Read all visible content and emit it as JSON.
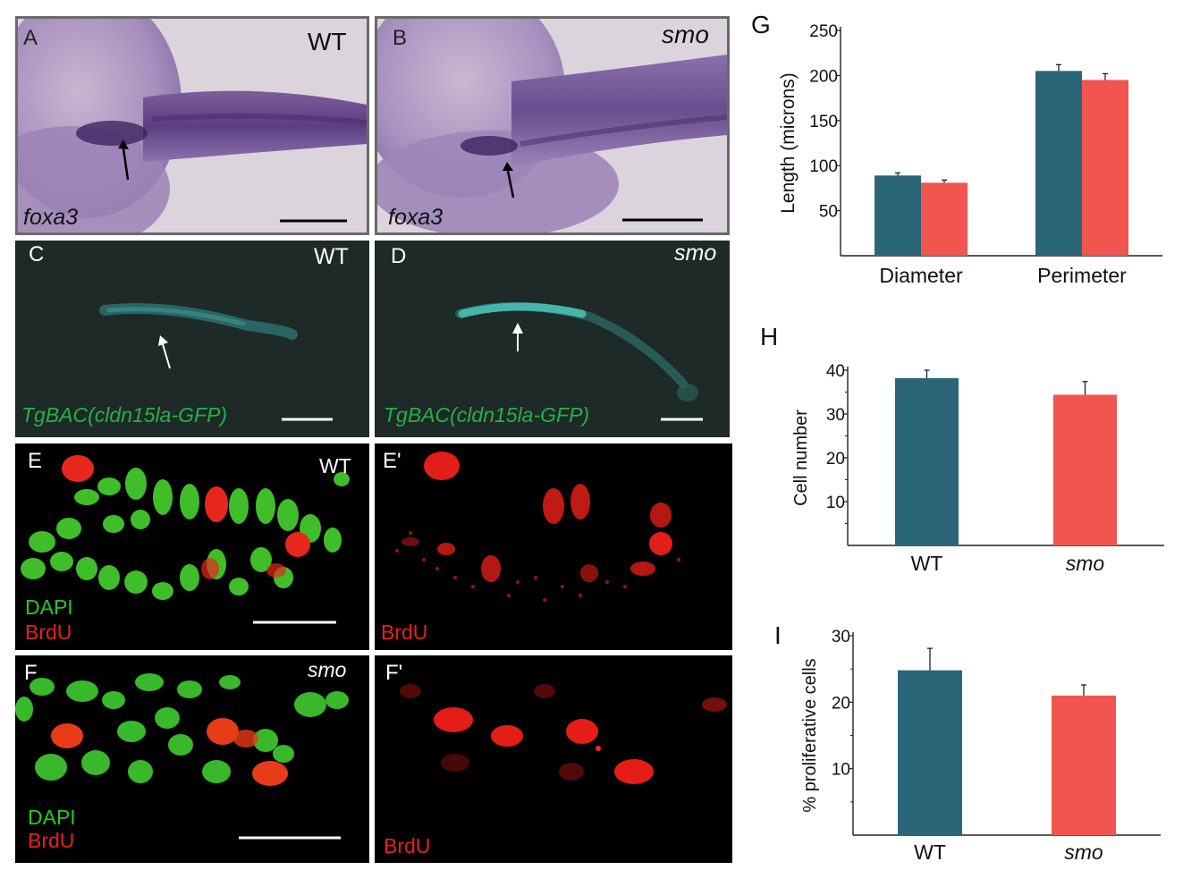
{
  "panels": {
    "A": {
      "letter": "A",
      "genotype": "WT",
      "stain": "foxa3"
    },
    "B": {
      "letter": "B",
      "genotype": "smo",
      "stain": "foxa3"
    },
    "C": {
      "letter": "C",
      "genotype": "WT",
      "transgene": "TgBAC(cldn15la-GFP)"
    },
    "D": {
      "letter": "D",
      "genotype": "smo",
      "transgene": "TgBAC(cldn15la-GFP)"
    },
    "E": {
      "letter": "E",
      "genotype": "WT",
      "dapi": "DAPI",
      "brdu": "BrdU"
    },
    "E2": {
      "letter": "E'",
      "brdu": "BrdU"
    },
    "F": {
      "letter": "F",
      "genotype": "smo",
      "dapi": "DAPI",
      "brdu": "BrdU"
    },
    "F2": {
      "letter": "F'",
      "brdu": "BrdU"
    }
  },
  "colors": {
    "wt": "#2a6677",
    "smo": "#f0564f",
    "dapi": "#22cc22",
    "brdu": "#e8201a",
    "gfp_label": "#27b044"
  },
  "chart_data": [
    {
      "panel": "G",
      "type": "bar",
      "ylabel": "Length (microns)",
      "categories": [
        "Diameter",
        "Perimeter"
      ],
      "series": [
        {
          "values": [
            89,
            205
          ],
          "errors": [
            3,
            7
          ],
          "color": "#2a6677"
        },
        {
          "values": [
            81,
            195
          ],
          "errors": [
            3,
            7
          ],
          "color": "#f0564f"
        }
      ],
      "ylim": [
        0,
        250
      ],
      "yticks": [
        50,
        100,
        150,
        200,
        250
      ]
    },
    {
      "panel": "H",
      "type": "bar",
      "ylabel": "Cell number",
      "categories": [
        "WT",
        "smo"
      ],
      "category_italic": [
        false,
        true
      ],
      "values": [
        38.2,
        34.4
      ],
      "errors": [
        1.8,
        3.0
      ],
      "colors": [
        "#2a6677",
        "#f0564f"
      ],
      "ylim": [
        0,
        40
      ],
      "yticks": [
        10,
        20,
        30,
        40
      ]
    },
    {
      "panel": "I",
      "type": "bar",
      "ylabel": "% proliferative cells",
      "categories": [
        "WT",
        "smo"
      ],
      "category_italic": [
        false,
        true
      ],
      "values": [
        24.8,
        21.0
      ],
      "errors": [
        3.3,
        1.6
      ],
      "colors": [
        "#2a6677",
        "#f0564f"
      ],
      "ylim": [
        0,
        30
      ],
      "yticks": [
        10,
        20,
        30
      ]
    }
  ]
}
